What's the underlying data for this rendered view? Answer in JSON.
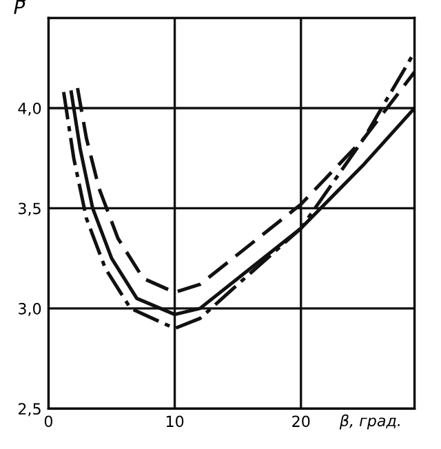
{
  "chart_data": {
    "type": "line",
    "xlabel": "β, град.",
    "ylabel": "P̄",
    "xlim": [
      0,
      29
    ],
    "ylim": [
      2.5,
      4.45
    ],
    "xticks": [
      0,
      10,
      20
    ],
    "yticks": [
      {
        "value": 2.5,
        "label": "2,5"
      },
      {
        "value": 3.0,
        "label": "3,0"
      },
      {
        "value": 3.5,
        "label": "3,5"
      },
      {
        "value": 4.0,
        "label": "4,0"
      }
    ],
    "grid": true,
    "marker": "none",
    "series": [
      {
        "color": "#111111",
        "line_style": "solid",
        "x": [
          1.8,
          2.5,
          3.5,
          5,
          7,
          10,
          12,
          15,
          20,
          25,
          29
        ],
        "values": [
          4.08,
          3.8,
          3.5,
          3.25,
          3.05,
          2.97,
          3.0,
          3.15,
          3.4,
          3.72,
          4.0
        ]
      },
      {
        "color": "#111111",
        "line_style": "dashdot",
        "x": [
          1.2,
          2,
          3,
          4.5,
          6.5,
          10,
          12,
          15,
          20,
          25,
          29
        ],
        "values": [
          4.08,
          3.75,
          3.45,
          3.2,
          3.0,
          2.9,
          2.95,
          3.12,
          3.4,
          3.85,
          4.28
        ]
      },
      {
        "color": "#111111",
        "line_style": "dashed",
        "x": [
          2.3,
          3,
          4,
          5.5,
          7.5,
          10,
          12,
          15,
          20,
          25,
          29
        ],
        "values": [
          4.1,
          3.85,
          3.6,
          3.35,
          3.15,
          3.08,
          3.12,
          3.27,
          3.52,
          3.85,
          4.18
        ]
      }
    ]
  }
}
